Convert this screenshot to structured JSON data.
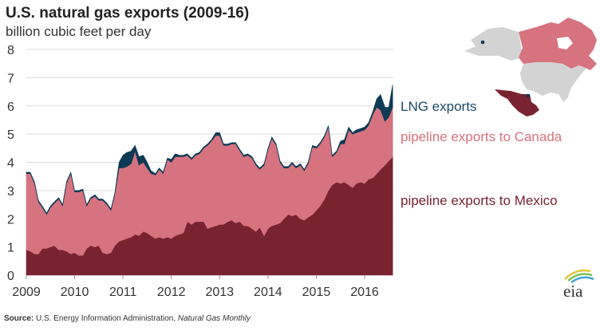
{
  "chart_data": {
    "type": "area",
    "stacked": true,
    "title": "U.S. natural gas exports (2009-16)",
    "subtitle": "billion cubic feet per day",
    "xlabel": "",
    "ylabel": "billion cubic feet per day",
    "ylim": [
      0,
      8
    ],
    "xlim": [
      2009,
      2016.6
    ],
    "yticks": [
      "0",
      "1",
      "2",
      "3",
      "4",
      "5",
      "6",
      "7",
      "8"
    ],
    "xticks": [
      "2009",
      "2010",
      "2011",
      "2012",
      "2013",
      "2014",
      "2015",
      "2016"
    ],
    "grid": true,
    "x": [
      2009.0,
      2009.08,
      2009.17,
      2009.25,
      2009.33,
      2009.42,
      2009.5,
      2009.58,
      2009.67,
      2009.75,
      2009.83,
      2009.92,
      2010.0,
      2010.08,
      2010.17,
      2010.25,
      2010.33,
      2010.42,
      2010.5,
      2010.58,
      2010.67,
      2010.75,
      2010.83,
      2010.92,
      2011.0,
      2011.08,
      2011.17,
      2011.25,
      2011.33,
      2011.42,
      2011.5,
      2011.58,
      2011.67,
      2011.75,
      2011.83,
      2011.92,
      2012.0,
      2012.08,
      2012.17,
      2012.25,
      2012.33,
      2012.42,
      2012.5,
      2012.58,
      2012.67,
      2012.75,
      2012.83,
      2012.92,
      2013.0,
      2013.08,
      2013.17,
      2013.25,
      2013.33,
      2013.42,
      2013.5,
      2013.58,
      2013.67,
      2013.75,
      2013.83,
      2013.92,
      2014.0,
      2014.08,
      2014.17,
      2014.25,
      2014.33,
      2014.42,
      2014.5,
      2014.58,
      2014.67,
      2014.75,
      2014.83,
      2014.92,
      2015.0,
      2015.08,
      2015.17,
      2015.25,
      2015.33,
      2015.42,
      2015.5,
      2015.58,
      2015.67,
      2015.75,
      2015.83,
      2015.92,
      2016.0,
      2016.08,
      2016.17,
      2016.25,
      2016.33,
      2016.42,
      2016.5,
      2016.58
    ],
    "series": [
      {
        "name": "pipeline exports to Mexico",
        "color": "#7a2330",
        "values": [
          0.9,
          0.85,
          0.75,
          0.75,
          0.95,
          0.95,
          1.0,
          1.05,
          0.9,
          0.9,
          0.85,
          0.75,
          0.8,
          0.7,
          0.7,
          0.95,
          1.05,
          1.0,
          1.05,
          0.8,
          0.75,
          0.8,
          1.05,
          1.2,
          1.25,
          1.3,
          1.35,
          1.45,
          1.4,
          1.55,
          1.5,
          1.4,
          1.3,
          1.35,
          1.3,
          1.35,
          1.3,
          1.4,
          1.45,
          1.5,
          1.9,
          1.8,
          1.9,
          1.9,
          1.9,
          1.65,
          1.7,
          1.75,
          1.8,
          1.8,
          1.9,
          1.95,
          1.85,
          1.9,
          1.75,
          1.75,
          1.65,
          1.55,
          1.7,
          1.4,
          1.65,
          1.75,
          1.8,
          1.85,
          2.0,
          2.15,
          2.1,
          2.15,
          2.0,
          1.95,
          2.05,
          2.15,
          2.3,
          2.45,
          2.7,
          3.0,
          3.2,
          3.3,
          3.25,
          3.3,
          3.2,
          3.1,
          3.25,
          3.3,
          3.25,
          3.4,
          3.45,
          3.6,
          3.75,
          3.9,
          4.05,
          4.2
        ]
      },
      {
        "name": "pipeline exports to Canada",
        "color": "#d6737f",
        "values": [
          2.7,
          2.75,
          2.5,
          1.85,
          1.45,
          1.2,
          1.4,
          1.5,
          1.8,
          1.55,
          2.4,
          2.85,
          2.15,
          2.25,
          2.3,
          1.5,
          1.65,
          1.8,
          1.6,
          1.85,
          1.75,
          1.5,
          1.8,
          2.6,
          2.55,
          2.55,
          2.6,
          2.95,
          2.5,
          2.45,
          2.3,
          2.2,
          2.25,
          2.4,
          2.3,
          2.75,
          2.7,
          2.8,
          2.75,
          2.7,
          2.35,
          2.3,
          2.35,
          2.4,
          2.6,
          2.95,
          3.05,
          3.2,
          3.15,
          2.8,
          2.7,
          2.7,
          2.8,
          2.5,
          2.45,
          2.5,
          2.5,
          2.35,
          2.05,
          2.5,
          2.8,
          3.1,
          2.8,
          2.15,
          1.8,
          1.65,
          1.85,
          1.65,
          1.9,
          1.75,
          1.9,
          2.4,
          2.2,
          2.2,
          2.2,
          2.25,
          1.0,
          1.05,
          1.4,
          1.35,
          1.95,
          1.9,
          1.8,
          1.8,
          1.9,
          1.9,
          2.25,
          2.35,
          2.1,
          1.55,
          1.55,
          1.75
        ]
      },
      {
        "name": "LNG exports",
        "color": "#0d3a55",
        "values": [
          0.05,
          0.05,
          0.05,
          0.05,
          0.05,
          0.05,
          0.05,
          0.05,
          0.05,
          0.05,
          0.05,
          0.05,
          0.05,
          0.05,
          0.05,
          0.05,
          0.05,
          0.05,
          0.05,
          0.05,
          0.05,
          0.05,
          0.05,
          0.2,
          0.45,
          0.5,
          0.45,
          0.2,
          0.3,
          0.25,
          0.2,
          0.1,
          0.05,
          0.05,
          0.05,
          0.05,
          0.1,
          0.1,
          0.05,
          0.05,
          0.05,
          0.05,
          0.05,
          0.05,
          0.05,
          0.05,
          0.05,
          0.1,
          0.1,
          0.05,
          0.05,
          0.05,
          0.05,
          0.05,
          0.05,
          0.05,
          0.05,
          0.05,
          0.05,
          0.05,
          0.05,
          0.05,
          0.05,
          0.05,
          0.05,
          0.05,
          0.05,
          0.05,
          0.05,
          0.05,
          0.05,
          0.05,
          0.05,
          0.05,
          0.05,
          0.05,
          0.05,
          0.05,
          0.1,
          0.15,
          0.1,
          0.05,
          0.1,
          0.1,
          0.1,
          0.1,
          0.1,
          0.3,
          0.55,
          0.5,
          0.35,
          0.8
        ]
      }
    ],
    "legend": [
      {
        "label": "LNG exports",
        "color": "#1b4a66"
      },
      {
        "label": "pipeline exports to Canada",
        "color": "#d9707d"
      },
      {
        "label": "pipeline exports to Mexico",
        "color": "#7a2330"
      }
    ],
    "legend_position": "right"
  },
  "map": {
    "canada_color": "#d6737f",
    "mexico_color": "#7a2330",
    "us_color": "#d0d0d0",
    "alaska_color": "#d0d0d0",
    "dot_color": "#0d3a55"
  },
  "logo": {
    "text": "eia"
  },
  "source": {
    "label": "Source:",
    "text": " U.S. Energy Information Administration, ",
    "publication": "Natural Gas Monthly"
  }
}
